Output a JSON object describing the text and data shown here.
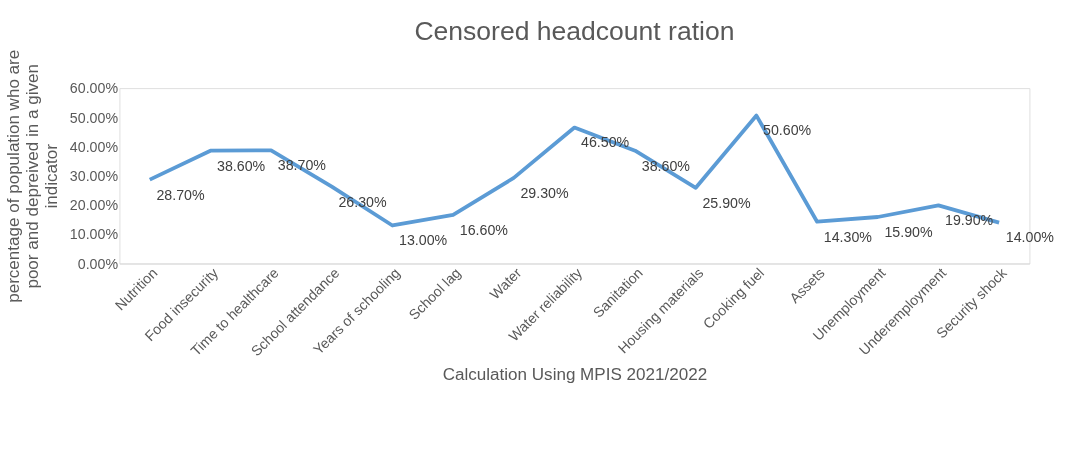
{
  "chart_data": {
    "type": "line",
    "title": "Censored headcount ration",
    "xlabel": "Calculation Using MPIS 2021/2022",
    "ylabel": "percentage of population who are poor and depreived in a given indicator",
    "categories": [
      "Nutrition",
      "Food insecurity",
      "Time to healthcare",
      "School attendance",
      "Years of schooling",
      "School lag",
      "Water",
      "Water reliability",
      "Sanitation",
      "Housing materials",
      "Cooking fuel",
      "Assets",
      "Unemployment",
      "Underemployment",
      "Security shock"
    ],
    "series": [
      {
        "color": "#5b9bd5",
        "values": [
          28.7,
          38.6,
          38.7,
          26.3,
          13.0,
          16.6,
          29.3,
          46.5,
          38.6,
          25.9,
          50.6,
          14.3,
          15.9,
          19.9,
          14.0
        ],
        "value_labels": [
          "28.70%",
          "38.60%",
          "38.70%",
          "26.30%",
          "13.00%",
          "16.60%",
          "29.30%",
          "46.50%",
          "38.60%",
          "25.90%",
          "50.60%",
          "14.30%",
          "15.90%",
          "19.90%",
          "14.00%"
        ]
      }
    ],
    "ylim": [
      0,
      60
    ],
    "yticks": [
      {
        "value": 0,
        "label": "0.00%"
      },
      {
        "value": 10,
        "label": "10.00%"
      },
      {
        "value": 20,
        "label": "20.00%"
      },
      {
        "value": 30,
        "label": "30.00%"
      },
      {
        "value": 40,
        "label": "40.00%"
      },
      {
        "value": 50,
        "label": "50.00%"
      },
      {
        "value": 60,
        "label": "60.00%"
      }
    ],
    "grid": false,
    "marker": "none",
    "line_style": "solid"
  }
}
